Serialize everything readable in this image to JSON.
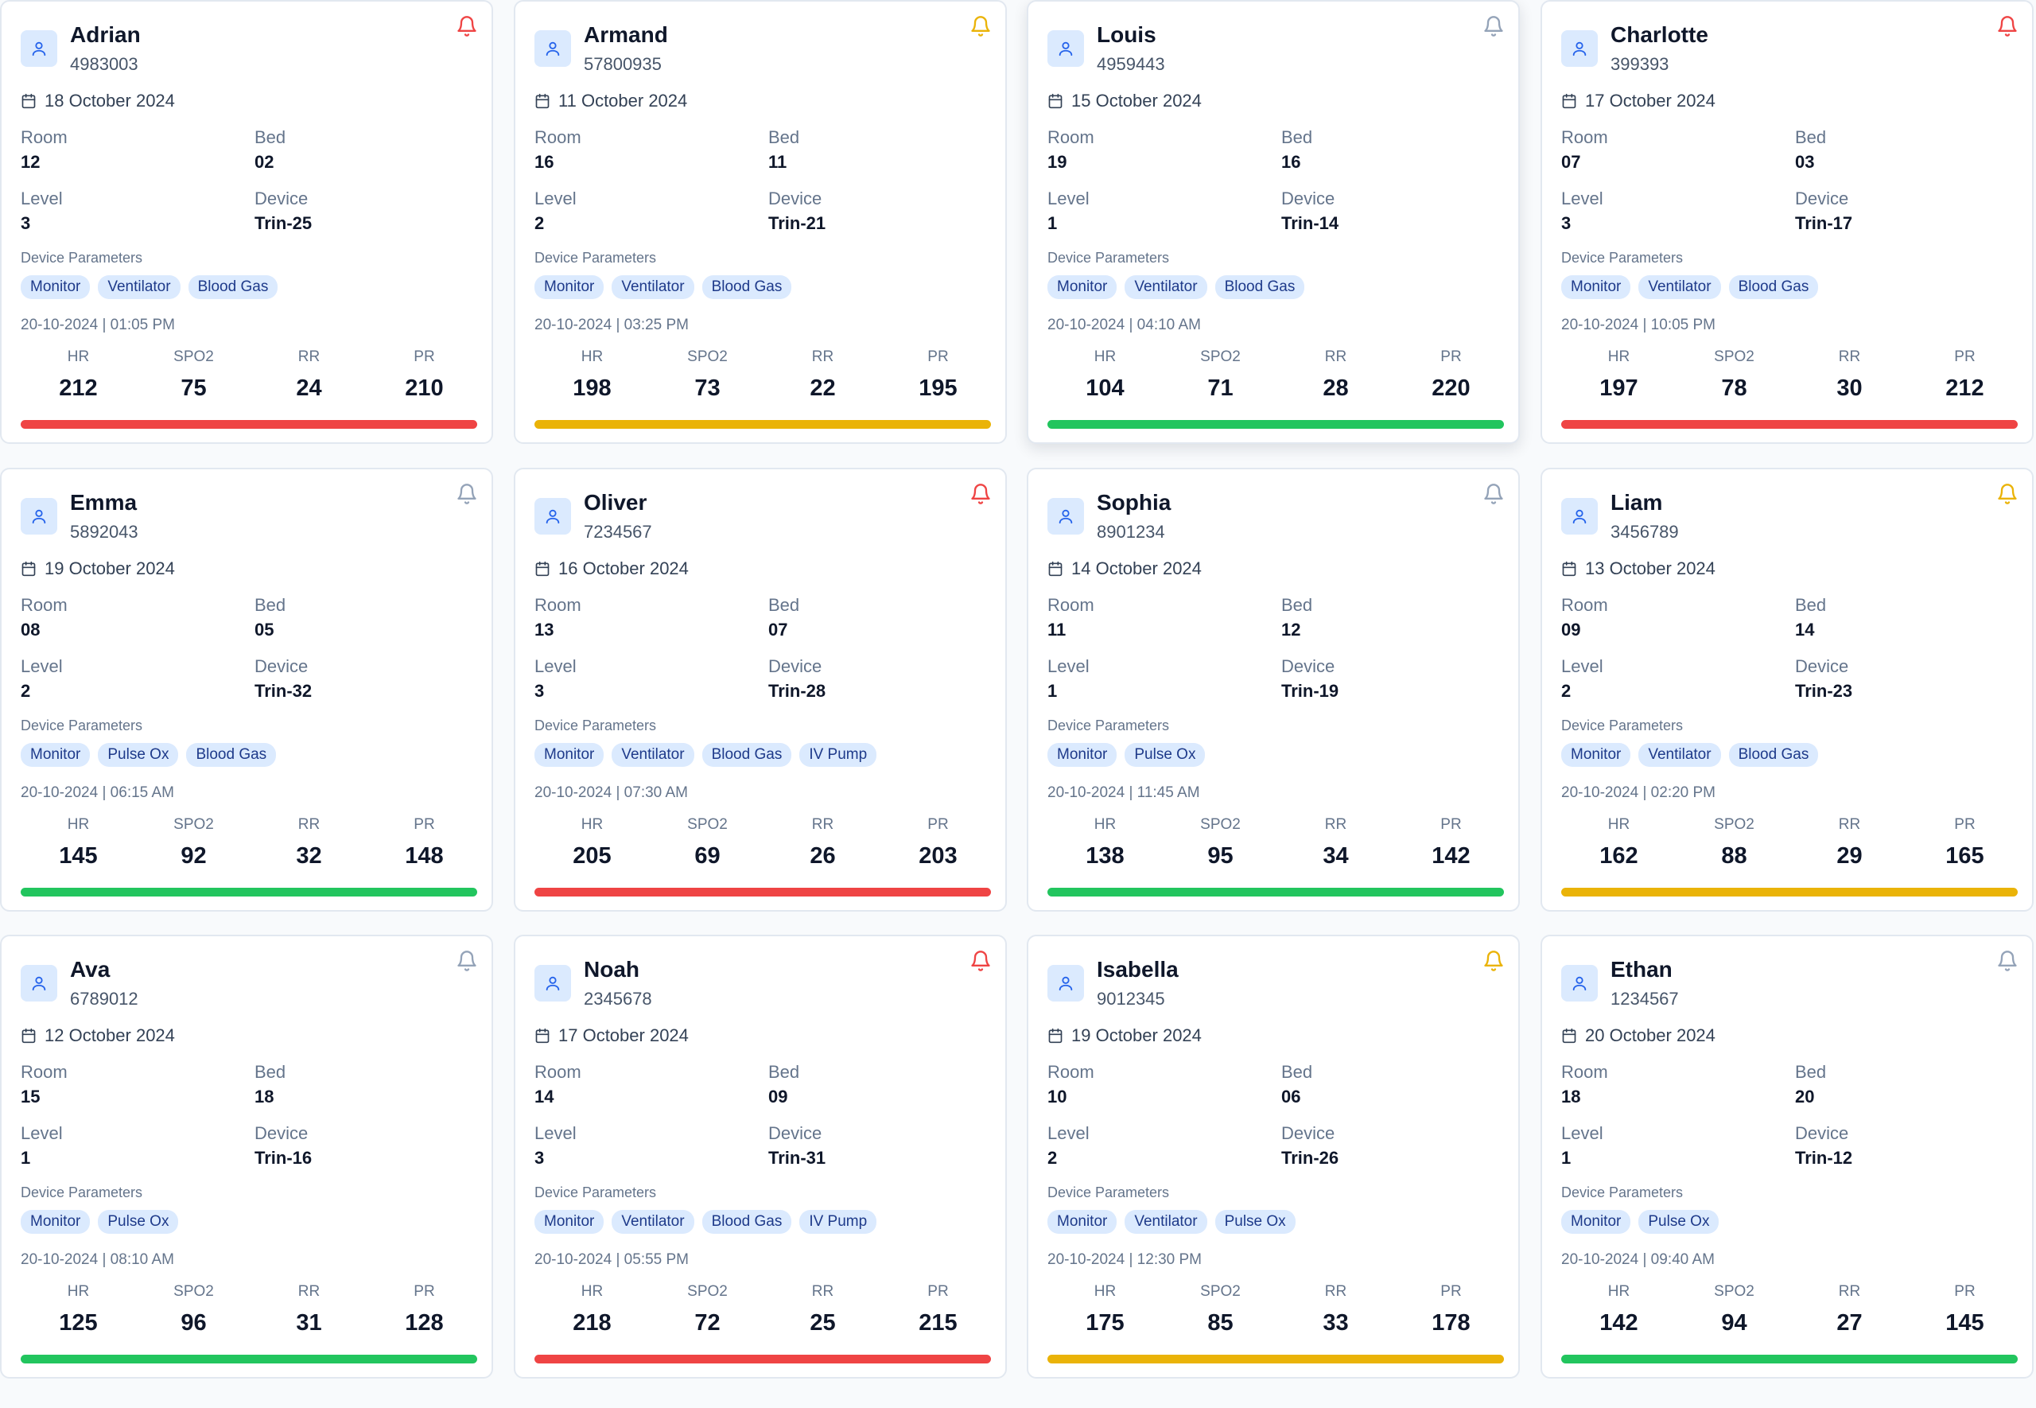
{
  "labels": {
    "room": "Room",
    "bed": "Bed",
    "level": "Level",
    "device": "Device",
    "device_parameters": "Device Parameters",
    "hr": "HR",
    "spo2": "SPO2",
    "rr": "RR",
    "pr": "PR"
  },
  "colors": {
    "critical": "#ef4444",
    "warning": "#eab308",
    "normal": "#22c55e",
    "muted": "#94a3b8",
    "tag_bg": "#dbeafe",
    "tag_text": "#1e3a8a"
  },
  "patients": [
    {
      "name": "Adrian",
      "id": "4983003",
      "date": "18 October 2024",
      "room": "12",
      "bed": "02",
      "level": "3",
      "device": "Trin-25",
      "params": [
        "Monitor",
        "Ventilator",
        "Blood Gas"
      ],
      "timestamp": "20-10-2024 | 01:05 PM",
      "hr": "212",
      "spo2": "75",
      "rr": "24",
      "pr": "210",
      "status": "critical",
      "alert": "critical"
    },
    {
      "name": "Armand",
      "id": "57800935",
      "date": "11 October 2024",
      "room": "16",
      "bed": "11",
      "level": "2",
      "device": "Trin-21",
      "params": [
        "Monitor",
        "Ventilator",
        "Blood Gas"
      ],
      "timestamp": "20-10-2024 | 03:25 PM",
      "hr": "198",
      "spo2": "73",
      "rr": "22",
      "pr": "195",
      "status": "warning",
      "alert": "warning"
    },
    {
      "name": "Louis",
      "id": "4959443",
      "date": "15 October 2024",
      "room": "19",
      "bed": "16",
      "level": "1",
      "device": "Trin-14",
      "params": [
        "Monitor",
        "Ventilator",
        "Blood Gas"
      ],
      "timestamp": "20-10-2024 | 04:10 AM",
      "hr": "104",
      "spo2": "71",
      "rr": "28",
      "pr": "220",
      "status": "normal",
      "alert": "muted"
    },
    {
      "name": "Charlotte",
      "id": "399393",
      "date": "17 October 2024",
      "room": "07",
      "bed": "03",
      "level": "3",
      "device": "Trin-17",
      "params": [
        "Monitor",
        "Ventilator",
        "Blood Gas"
      ],
      "timestamp": "20-10-2024 | 10:05 PM",
      "hr": "197",
      "spo2": "78",
      "rr": "30",
      "pr": "212",
      "status": "critical",
      "alert": "critical"
    },
    {
      "name": "Emma",
      "id": "5892043",
      "date": "19 October 2024",
      "room": "08",
      "bed": "05",
      "level": "2",
      "device": "Trin-32",
      "params": [
        "Monitor",
        "Pulse Ox",
        "Blood Gas"
      ],
      "timestamp": "20-10-2024 | 06:15 AM",
      "hr": "145",
      "spo2": "92",
      "rr": "32",
      "pr": "148",
      "status": "normal",
      "alert": "muted"
    },
    {
      "name": "Oliver",
      "id": "7234567",
      "date": "16 October 2024",
      "room": "13",
      "bed": "07",
      "level": "3",
      "device": "Trin-28",
      "params": [
        "Monitor",
        "Ventilator",
        "Blood Gas",
        "IV Pump"
      ],
      "timestamp": "20-10-2024 | 07:30 AM",
      "hr": "205",
      "spo2": "69",
      "rr": "26",
      "pr": "203",
      "status": "critical",
      "alert": "critical"
    },
    {
      "name": "Sophia",
      "id": "8901234",
      "date": "14 October 2024",
      "room": "11",
      "bed": "12",
      "level": "1",
      "device": "Trin-19",
      "params": [
        "Monitor",
        "Pulse Ox"
      ],
      "timestamp": "20-10-2024 | 11:45 AM",
      "hr": "138",
      "spo2": "95",
      "rr": "34",
      "pr": "142",
      "status": "normal",
      "alert": "muted"
    },
    {
      "name": "Liam",
      "id": "3456789",
      "date": "13 October 2024",
      "room": "09",
      "bed": "14",
      "level": "2",
      "device": "Trin-23",
      "params": [
        "Monitor",
        "Ventilator",
        "Blood Gas"
      ],
      "timestamp": "20-10-2024 | 02:20 PM",
      "hr": "162",
      "spo2": "88",
      "rr": "29",
      "pr": "165",
      "status": "warning",
      "alert": "warning"
    },
    {
      "name": "Ava",
      "id": "6789012",
      "date": "12 October 2024",
      "room": "15",
      "bed": "18",
      "level": "1",
      "device": "Trin-16",
      "params": [
        "Monitor",
        "Pulse Ox"
      ],
      "timestamp": "20-10-2024 | 08:10 AM",
      "hr": "125",
      "spo2": "96",
      "rr": "31",
      "pr": "128",
      "status": "normal",
      "alert": "muted"
    },
    {
      "name": "Noah",
      "id": "2345678",
      "date": "17 October 2024",
      "room": "14",
      "bed": "09",
      "level": "3",
      "device": "Trin-31",
      "params": [
        "Monitor",
        "Ventilator",
        "Blood Gas",
        "IV Pump"
      ],
      "timestamp": "20-10-2024 | 05:55 PM",
      "hr": "218",
      "spo2": "72",
      "rr": "25",
      "pr": "215",
      "status": "critical",
      "alert": "critical"
    },
    {
      "name": "Isabella",
      "id": "9012345",
      "date": "19 October 2024",
      "room": "10",
      "bed": "06",
      "level": "2",
      "device": "Trin-26",
      "params": [
        "Monitor",
        "Ventilator",
        "Pulse Ox"
      ],
      "timestamp": "20-10-2024 | 12:30 PM",
      "hr": "175",
      "spo2": "85",
      "rr": "33",
      "pr": "178",
      "status": "warning",
      "alert": "warning"
    },
    {
      "name": "Ethan",
      "id": "1234567",
      "date": "20 October 2024",
      "room": "18",
      "bed": "20",
      "level": "1",
      "device": "Trin-12",
      "params": [
        "Monitor",
        "Pulse Ox"
      ],
      "timestamp": "20-10-2024 | 09:40 AM",
      "hr": "142",
      "spo2": "94",
      "rr": "27",
      "pr": "145",
      "status": "normal",
      "alert": "muted"
    }
  ]
}
